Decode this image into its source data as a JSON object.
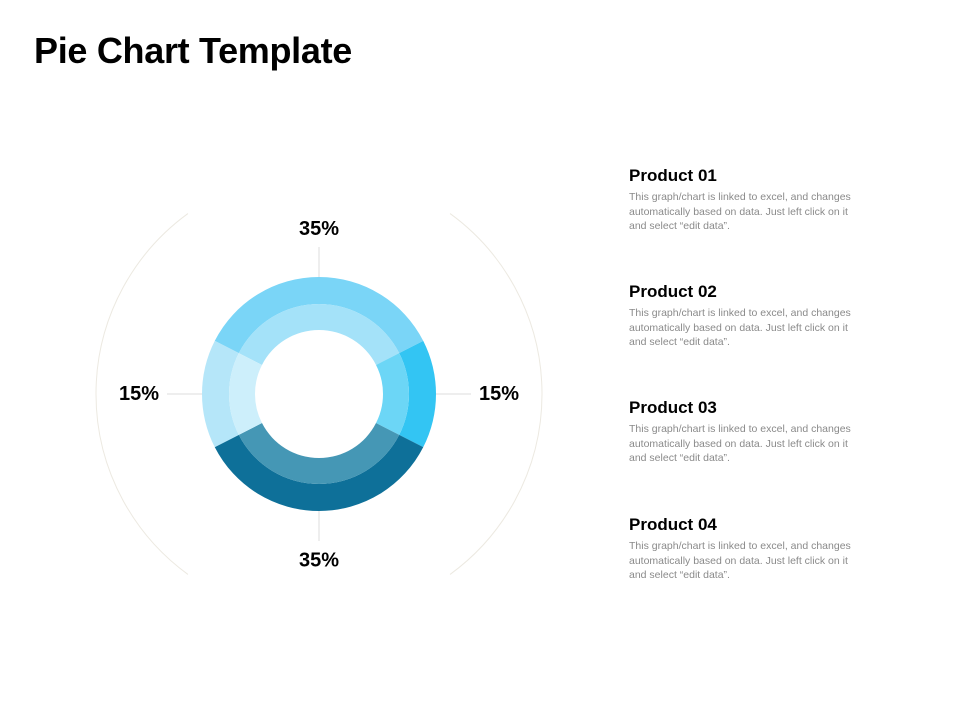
{
  "page": {
    "title": "Pie Chart Template"
  },
  "chart_data": {
    "type": "pie",
    "categories": [
      "Product 01",
      "Product 02",
      "Product 03",
      "Product 04"
    ],
    "values": [
      35,
      15,
      35,
      15
    ],
    "labels": [
      "35%",
      "15%",
      "35%",
      "15%"
    ],
    "colors": [
      "#7ad5f7",
      "#33c5f3",
      "#0e7099",
      "#b5e6f9"
    ],
    "inner_colors": [
      "#a4e2f9",
      "#6cd6f6",
      "#4597b5",
      "#cdeffb"
    ]
  },
  "legend": [
    {
      "title": "Product 01",
      "text": "This graph/chart is linked to excel, and changes automatically based on data. Just left click on it and select “edit data”."
    },
    {
      "title": "Product 02",
      "text": "This graph/chart is linked to excel, and changes automatically based on data. Just left click on it and select “edit data”."
    },
    {
      "title": "Product 03",
      "text": "This graph/chart is linked to excel, and changes automatically based on data. Just left click on it and select “edit data”."
    },
    {
      "title": "Product 04",
      "text": "This graph/chart is linked to excel, and changes automatically based on data. Just left click on it and select “edit data”."
    }
  ]
}
